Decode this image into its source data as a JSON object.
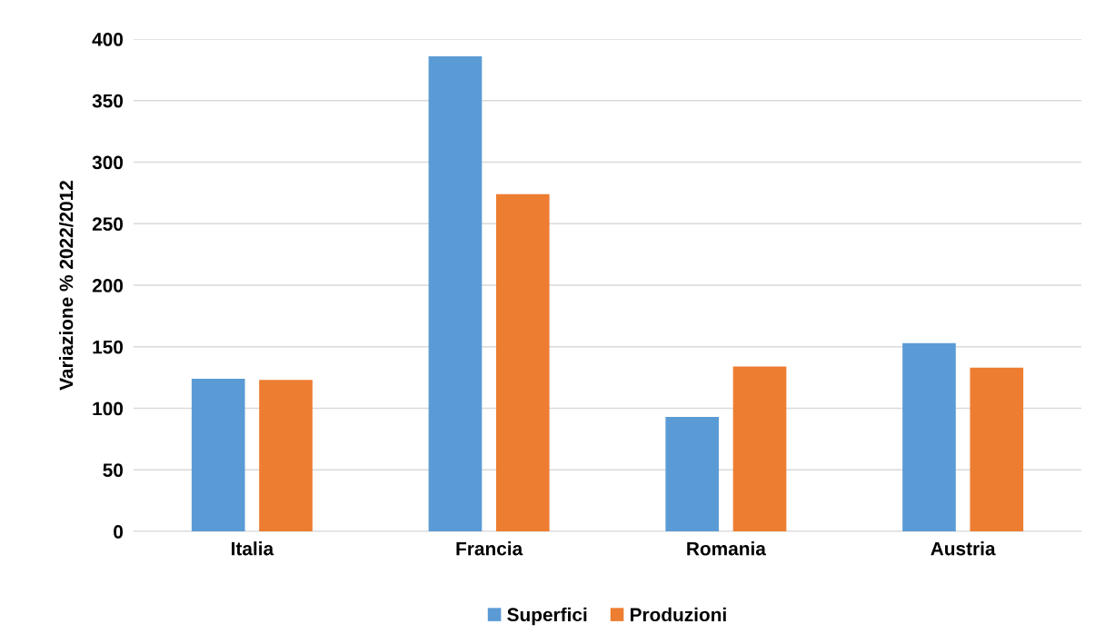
{
  "chart_data": {
    "type": "bar",
    "ylabel": "Variazione % 2022/2012",
    "categories": [
      "Italia",
      "Francia",
      "Romania",
      "Austria"
    ],
    "series": [
      {
        "name": "Superfici",
        "color": "#5b9bd5",
        "values": [
          124,
          386,
          93,
          153
        ]
      },
      {
        "name": "Produzioni",
        "color": "#ed7d31",
        "values": [
          123,
          274,
          134,
          133
        ]
      }
    ],
    "ylim": [
      0,
      400
    ],
    "yticks": [
      0,
      50,
      100,
      150,
      200,
      250,
      300,
      350,
      400
    ],
    "grid": "y",
    "legend": "bottom"
  }
}
